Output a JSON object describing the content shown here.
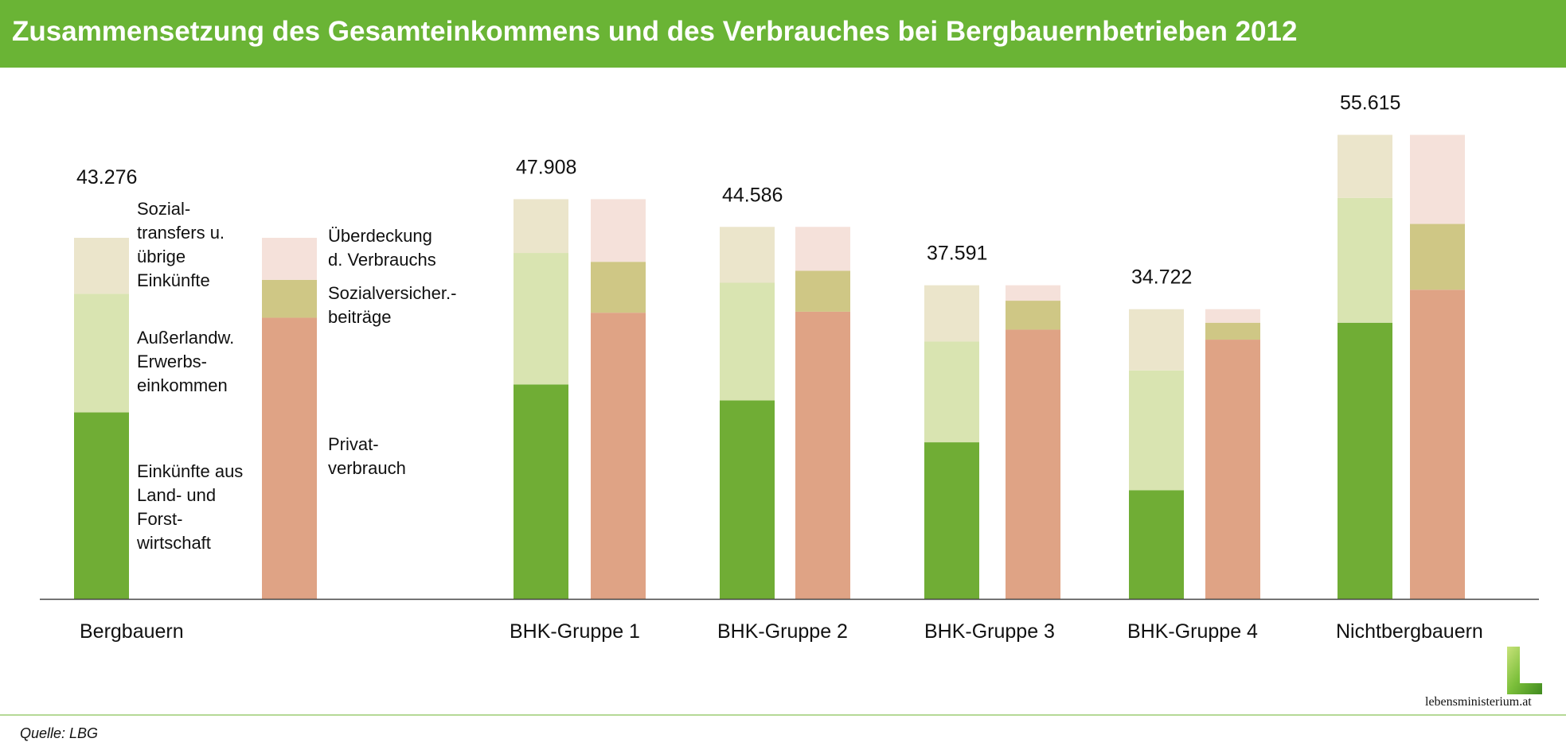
{
  "title": "Zusammensetzung des Gesamteinkommens und des Verbrauches bei Bergbauernbetrieben 2012",
  "source": "Quelle: LBG",
  "logo_text": "lebensministerium.at",
  "annotations": {
    "sozialtransfers": "Sozial-\ntransfers u.\nübrige\nEinkünfte",
    "ausserlandw": "Außerlandw.\nErwerbs-\neinkommen",
    "einkuenfte_lf": "Einkünfte aus\nLand- und\nForst-\nwirtschaft",
    "ueberdeckung": "Überdeckung\nd. Verbrauchs",
    "sozialversicherung": "Sozialversicher.-\nbeiträge",
    "privatverbrauch": "Privat-\nverbrauch"
  },
  "chart_data": {
    "type": "bar",
    "stacked": true,
    "title": "Zusammensetzung des Gesamteinkommens und des Verbrauches bei Bergbauernbetrieben 2012",
    "categories": [
      "Bergbauern",
      "BHK-Gruppe 1",
      "BHK-Gruppe 2",
      "BHK-Gruppe 3",
      "BHK-Gruppe 4",
      "Nichtbergbauern"
    ],
    "totals": [
      "43.276",
      "47.908",
      "44.586",
      "37.591",
      "34.722",
      "55.615"
    ],
    "ylim": [
      0,
      56000
    ],
    "grid": false,
    "income_series": [
      {
        "name": "Einkünfte aus Land- und Forstwirtschaft",
        "color": "#70ad35",
        "values": [
          22350,
          25700,
          23790,
          18770,
          13030,
          33100
        ]
      },
      {
        "name": "Außerlandw. Erwerbseinkommen",
        "color": "#d9e4b1",
        "values": [
          14220,
          15760,
          14100,
          12070,
          14340,
          14950
        ]
      },
      {
        "name": "Sozialtransfers u. übrige Einkünfte",
        "color": "#ebe5cb",
        "values": [
          6706,
          6448,
          6696,
          6751,
          7352,
          7565
        ]
      }
    ],
    "consumption_series": [
      {
        "name": "Privatverbrauch",
        "color": "#dfa385",
        "values": [
          33700,
          34300,
          34420,
          32270,
          31070,
          37050
        ]
      },
      {
        "name": "Sozialversicherungsbeiträge",
        "color": "#cfc785",
        "values": [
          4540,
          6100,
          4900,
          3470,
          2030,
          7890
        ]
      },
      {
        "name": "Überdeckung d. Verbrauchs",
        "color": "#f5e1da",
        "values": [
          5036,
          7508,
          5266,
          1851,
          1622,
          10675
        ]
      }
    ]
  }
}
